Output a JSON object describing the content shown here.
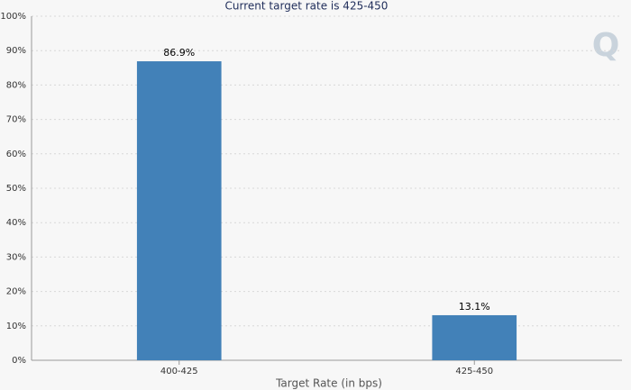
{
  "chart_data": {
    "type": "bar",
    "title": "Current target rate is 425-450",
    "logo": "Q",
    "x_label": "Target Rate (in bps)",
    "categories": [
      "400-425",
      "425-450"
    ],
    "values": [
      86.9,
      13.1
    ],
    "value_labels": [
      "86.9%",
      "13.1%"
    ],
    "color": "#4281b8",
    "ylim": [
      0,
      100
    ],
    "yticks": [
      {
        "value": 0,
        "label": "0%"
      },
      {
        "value": 10,
        "label": "10%"
      },
      {
        "value": 20,
        "label": "20%"
      },
      {
        "value": 30,
        "label": "30%"
      },
      {
        "value": 40,
        "label": "40%"
      },
      {
        "value": 50,
        "label": "50%"
      },
      {
        "value": 60,
        "label": "60%"
      },
      {
        "value": 70,
        "label": "70%"
      },
      {
        "value": 80,
        "label": "80%"
      },
      {
        "value": 90,
        "label": "90%"
      },
      {
        "value": 100,
        "label": "100%"
      }
    ],
    "grid": true
  }
}
